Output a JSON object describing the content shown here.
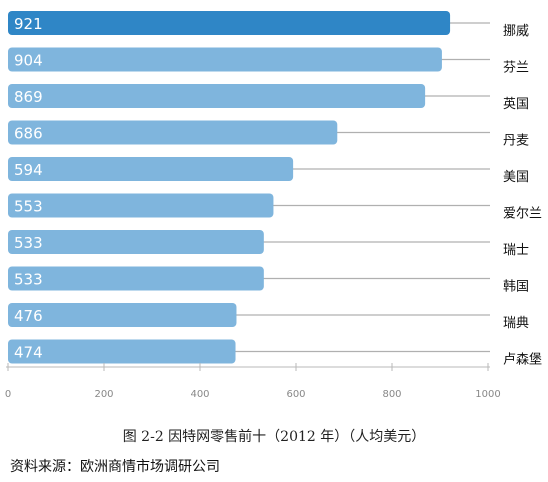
{
  "chart_data": {
    "type": "bar",
    "orientation": "horizontal",
    "categories": [
      "挪威",
      "芬兰",
      "英国",
      "丹麦",
      "美国",
      "爱尔兰",
      "瑞士",
      "韩国",
      "瑞典",
      "卢森堡"
    ],
    "values": [
      921,
      904,
      869,
      686,
      594,
      553,
      533,
      533,
      476,
      474
    ],
    "xlim": [
      0,
      1000
    ],
    "xticks": [
      0,
      200,
      400,
      600,
      800,
      1000
    ],
    "grid": false,
    "bar_color": "#7fb5dd",
    "highlight_color": "#2f86c6",
    "highlight_index": 0,
    "title": "图 2-2 因特网零售前十（2012 年）（人均美元）"
  },
  "source": "资料来源：欧洲商情市场调研公司"
}
